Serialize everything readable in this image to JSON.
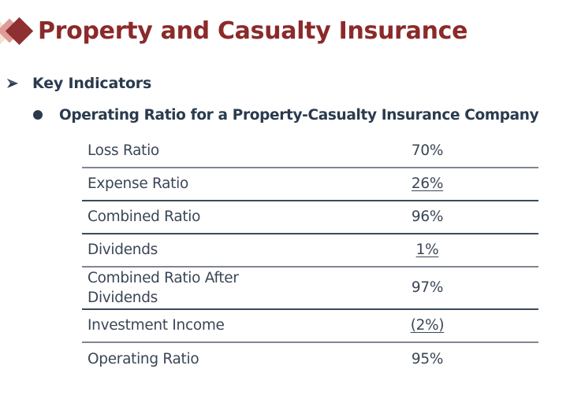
{
  "header": {
    "title": "Property and Casualty Insurance",
    "logo": "stacked-diamonds-logo",
    "title_color": "#8b2a2a"
  },
  "bullets": {
    "level1": {
      "icon": "arrow-bullet-icon",
      "text": "Key Indicators"
    },
    "level2": {
      "icon": "dot-bullet-icon",
      "text": "Operating Ratio for a Property-Casualty Insurance Company"
    }
  },
  "table": {
    "rows": [
      {
        "label": "Loss Ratio",
        "value": "70%",
        "underlined": false
      },
      {
        "label": "Expense Ratio",
        "value": "26%",
        "underlined": true
      },
      {
        "label": "Combined Ratio",
        "value": "96%",
        "underlined": false
      },
      {
        "label": "Dividends",
        "value": "1%",
        "underlined": true
      },
      {
        "label_line1": "Combined Ratio After",
        "label_line2": "Dividends",
        "value": "97%",
        "underlined": false
      },
      {
        "label": "Investment Income",
        "value": "(2%)",
        "underlined": true
      },
      {
        "label": "Operating Ratio",
        "value": "95%",
        "underlined": false
      }
    ]
  },
  "colors": {
    "text_dark": "#2a3a4e",
    "table_text": "#3a4656",
    "rule_light": "#7f8791",
    "rule_dark": "#3b4a5a"
  }
}
